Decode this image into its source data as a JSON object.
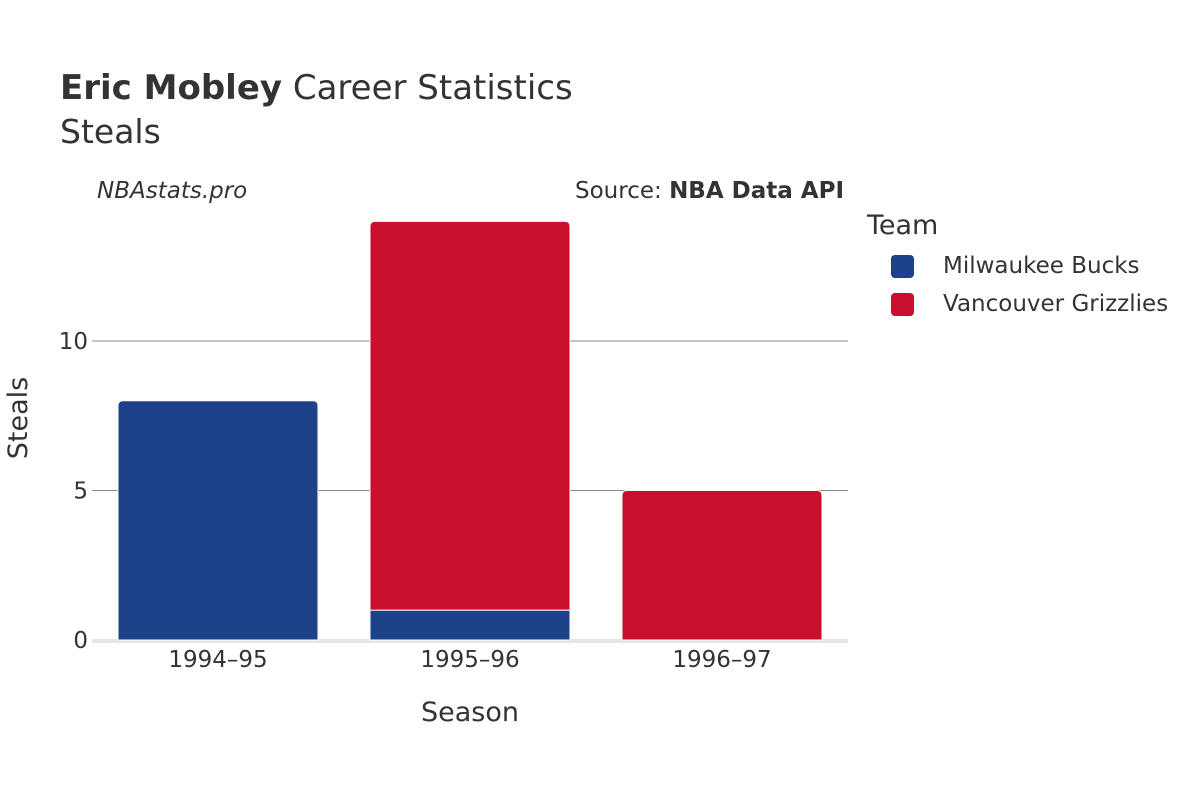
{
  "title_bold": "Eric Mobley",
  "title_rest": " Career Statistics",
  "subtitle": "Steals",
  "watermark": "NBAstats.pro",
  "source_prefix": "Source: ",
  "source_name": "NBA Data API",
  "legend": {
    "title": "Team",
    "items": [
      {
        "label": "Milwaukee Bucks",
        "color": "#1d428a"
      },
      {
        "label": "Vancouver Grizzlies",
        "color": "#c8102e"
      }
    ]
  },
  "chart_data": {
    "type": "bar",
    "stacked": true,
    "categories": [
      "1994–95",
      "1995–96",
      "1996–97"
    ],
    "series": [
      {
        "name": "Milwaukee Bucks",
        "color": "#1d428a",
        "values": [
          8,
          1,
          0
        ]
      },
      {
        "name": "Vancouver Grizzlies",
        "color": "#c8102e",
        "values": [
          0,
          13,
          5
        ]
      }
    ],
    "xlabel": "Season",
    "ylabel": "Steals",
    "yticks": [
      0,
      5,
      10
    ],
    "ylim": [
      0,
      14.6
    ],
    "grid": true
  }
}
